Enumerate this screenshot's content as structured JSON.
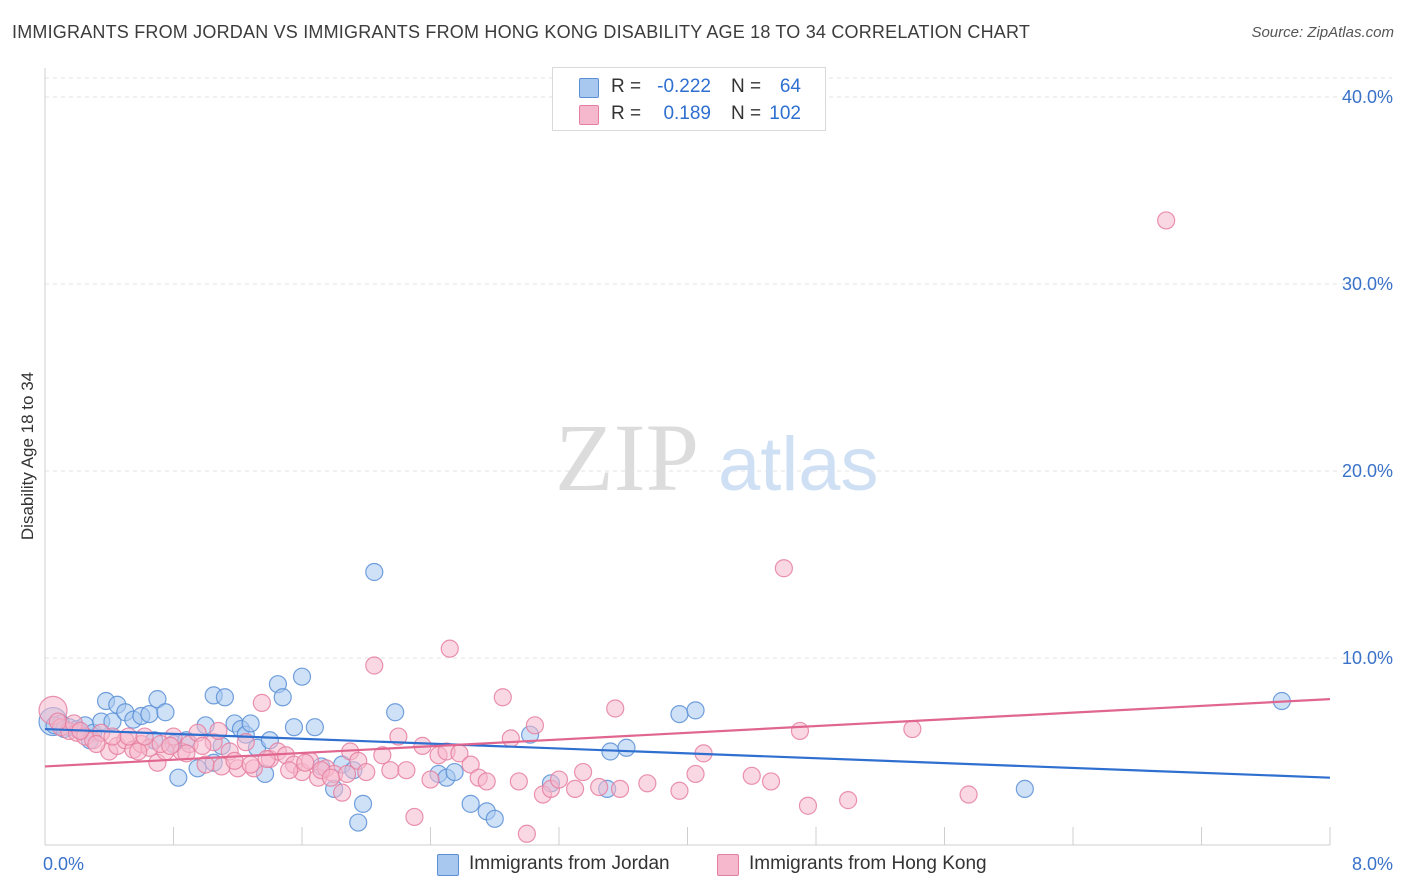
{
  "title": "IMMIGRANTS FROM JORDAN VS IMMIGRANTS FROM HONG KONG DISABILITY AGE 18 TO 34 CORRELATION CHART",
  "source": "Source: ZipAtlas.com",
  "watermark": {
    "zip": "ZIP",
    "atlas": "atlas"
  },
  "colors": {
    "jordan_fill": "#a8c8f0",
    "jordan_stroke": "#5b8fd6",
    "jordan_line": "#2f6fd0",
    "hongkong_fill": "#f6b8cc",
    "hongkong_stroke": "#e57fa0",
    "hongkong_line": "#e0658f",
    "tick_label": "#3a72c9",
    "grid": "#e3e3e3"
  },
  "legend": {
    "rows": [
      {
        "r_label": "R =",
        "r_value": "-0.222",
        "n_label": "N =",
        "n_value": "64"
      },
      {
        "r_label": "R =",
        "r_value": "0.189",
        "n_label": "N =",
        "n_value": "102"
      }
    ]
  },
  "chart_data": {
    "type": "scatter",
    "title": "IMMIGRANTS FROM JORDAN VS IMMIGRANTS FROM HONG KONG DISABILITY AGE 18 TO 34 CORRELATION CHART",
    "xlabel": "",
    "ylabel": "Disability Age 18 to 34",
    "xlim": [
      0,
      8
    ],
    "ylim": [
      0,
      41
    ],
    "x_tick_labels": [
      "0.0%",
      "8.0%"
    ],
    "y_ticks": [
      10,
      20,
      30,
      40
    ],
    "y_tick_labels": [
      "10.0%",
      "20.0%",
      "30.0%",
      "40.0%"
    ],
    "grid": true,
    "legend_position": "bottom",
    "series": [
      {
        "name": "Immigrants from Jordan",
        "r": -0.222,
        "n": 64,
        "trend": [
          [
            0,
            6.2
          ],
          [
            8,
            3.6
          ]
        ],
        "points": [
          [
            0.05,
            6.6
          ],
          [
            0.1,
            6.5
          ],
          [
            0.15,
            6.3
          ],
          [
            0.2,
            6.2
          ],
          [
            0.25,
            6.4
          ],
          [
            0.3,
            6.0
          ],
          [
            0.35,
            6.6
          ],
          [
            0.38,
            7.7
          ],
          [
            0.42,
            6.6
          ],
          [
            0.45,
            7.5
          ],
          [
            0.5,
            7.1
          ],
          [
            0.55,
            6.7
          ],
          [
            0.6,
            6.9
          ],
          [
            0.65,
            7.0
          ],
          [
            0.7,
            7.8
          ],
          [
            0.75,
            7.1
          ],
          [
            0.8,
            5.4
          ],
          [
            0.83,
            3.6
          ],
          [
            0.88,
            5.6
          ],
          [
            0.95,
            4.1
          ],
          [
            1.0,
            6.4
          ],
          [
            1.05,
            4.4
          ],
          [
            1.05,
            8.0
          ],
          [
            1.12,
            7.9
          ],
          [
            1.18,
            6.5
          ],
          [
            1.22,
            6.2
          ],
          [
            1.25,
            5.9
          ],
          [
            1.28,
            6.5
          ],
          [
            1.32,
            5.2
          ],
          [
            1.37,
            3.8
          ],
          [
            1.4,
            5.6
          ],
          [
            1.45,
            8.6
          ],
          [
            1.48,
            7.9
          ],
          [
            1.55,
            6.3
          ],
          [
            1.6,
            9.0
          ],
          [
            1.68,
            6.3
          ],
          [
            1.72,
            4.2
          ],
          [
            1.8,
            3.0
          ],
          [
            1.85,
            4.3
          ],
          [
            1.92,
            4.0
          ],
          [
            1.95,
            1.2
          ],
          [
            1.98,
            2.2
          ],
          [
            2.05,
            14.6
          ],
          [
            2.18,
            7.1
          ],
          [
            2.45,
            3.8
          ],
          [
            2.5,
            3.6
          ],
          [
            2.55,
            3.9
          ],
          [
            2.65,
            2.2
          ],
          [
            2.75,
            1.8
          ],
          [
            2.8,
            1.4
          ],
          [
            3.02,
            5.9
          ],
          [
            3.15,
            3.3
          ],
          [
            3.5,
            3.0
          ],
          [
            3.52,
            5.0
          ],
          [
            3.62,
            5.2
          ],
          [
            3.95,
            7.0
          ],
          [
            4.05,
            7.2
          ],
          [
            6.1,
            3.0
          ],
          [
            7.7,
            7.7
          ],
          [
            0.06,
            6.4
          ],
          [
            0.12,
            6.2
          ],
          [
            0.28,
            5.6
          ],
          [
            0.68,
            5.6
          ],
          [
            1.1,
            5.3
          ]
        ]
      },
      {
        "name": "Immigrants from Hong Kong",
        "r": 0.189,
        "n": 102,
        "trend": [
          [
            0,
            4.2
          ],
          [
            8,
            7.8
          ]
        ],
        "points": [
          [
            0.05,
            7.2
          ],
          [
            0.1,
            6.3
          ],
          [
            0.15,
            6.1
          ],
          [
            0.2,
            6.0
          ],
          [
            0.25,
            5.8
          ],
          [
            0.3,
            5.6
          ],
          [
            0.35,
            6.0
          ],
          [
            0.4,
            5.0
          ],
          [
            0.45,
            5.3
          ],
          [
            0.5,
            5.6
          ],
          [
            0.55,
            5.1
          ],
          [
            0.6,
            5.4
          ],
          [
            0.65,
            5.2
          ],
          [
            0.7,
            4.4
          ],
          [
            0.75,
            5.0
          ],
          [
            0.8,
            5.8
          ],
          [
            0.85,
            5.0
          ],
          [
            0.9,
            5.4
          ],
          [
            0.95,
            6.0
          ],
          [
            1.0,
            4.3
          ],
          [
            1.05,
            5.5
          ],
          [
            1.1,
            4.2
          ],
          [
            1.15,
            5.0
          ],
          [
            1.2,
            4.1
          ],
          [
            1.25,
            5.5
          ],
          [
            1.3,
            4.1
          ],
          [
            1.35,
            7.6
          ],
          [
            1.4,
            4.6
          ],
          [
            1.45,
            5.0
          ],
          [
            1.5,
            4.8
          ],
          [
            1.55,
            4.3
          ],
          [
            1.6,
            3.9
          ],
          [
            1.65,
            4.5
          ],
          [
            1.7,
            3.6
          ],
          [
            1.75,
            4.1
          ],
          [
            1.8,
            3.8
          ],
          [
            1.85,
            2.8
          ],
          [
            1.9,
            5.0
          ],
          [
            1.95,
            4.5
          ],
          [
            2.0,
            3.9
          ],
          [
            2.05,
            9.6
          ],
          [
            2.1,
            4.8
          ],
          [
            2.15,
            4.0
          ],
          [
            2.2,
            5.8
          ],
          [
            2.25,
            4.0
          ],
          [
            2.3,
            1.5
          ],
          [
            2.35,
            5.3
          ],
          [
            2.4,
            3.5
          ],
          [
            2.45,
            4.8
          ],
          [
            2.5,
            5.0
          ],
          [
            2.52,
            10.5
          ],
          [
            2.58,
            4.9
          ],
          [
            2.65,
            4.3
          ],
          [
            2.7,
            3.6
          ],
          [
            2.75,
            3.4
          ],
          [
            2.85,
            7.9
          ],
          [
            2.9,
            5.7
          ],
          [
            2.95,
            3.4
          ],
          [
            3.0,
            0.6
          ],
          [
            3.05,
            6.4
          ],
          [
            3.1,
            2.7
          ],
          [
            3.15,
            3.0
          ],
          [
            3.2,
            3.5
          ],
          [
            3.3,
            3.0
          ],
          [
            3.35,
            3.9
          ],
          [
            3.45,
            3.1
          ],
          [
            3.55,
            7.3
          ],
          [
            3.58,
            3.0
          ],
          [
            3.75,
            3.3
          ],
          [
            3.95,
            2.9
          ],
          [
            4.05,
            3.8
          ],
          [
            4.1,
            4.9
          ],
          [
            4.4,
            3.7
          ],
          [
            4.52,
            3.4
          ],
          [
            4.6,
            14.8
          ],
          [
            4.7,
            6.1
          ],
          [
            4.75,
            2.1
          ],
          [
            5.0,
            2.4
          ],
          [
            5.4,
            6.2
          ],
          [
            5.75,
            2.7
          ],
          [
            6.98,
            33.4
          ],
          [
            0.08,
            6.6
          ],
          [
            0.18,
            6.5
          ],
          [
            0.22,
            6.1
          ],
          [
            0.32,
            5.4
          ],
          [
            0.42,
            5.8
          ],
          [
            0.52,
            5.8
          ],
          [
            0.58,
            5.0
          ],
          [
            0.62,
            5.8
          ],
          [
            0.72,
            5.4
          ],
          [
            0.78,
            5.3
          ],
          [
            0.88,
            4.9
          ],
          [
            0.98,
            5.3
          ],
          [
            1.08,
            6.1
          ],
          [
            1.18,
            4.5
          ],
          [
            1.28,
            4.3
          ],
          [
            1.38,
            4.6
          ],
          [
            1.52,
            4.0
          ],
          [
            1.62,
            4.4
          ],
          [
            1.72,
            4.0
          ],
          [
            1.78,
            3.6
          ],
          [
            1.88,
            3.8
          ]
        ]
      }
    ]
  }
}
